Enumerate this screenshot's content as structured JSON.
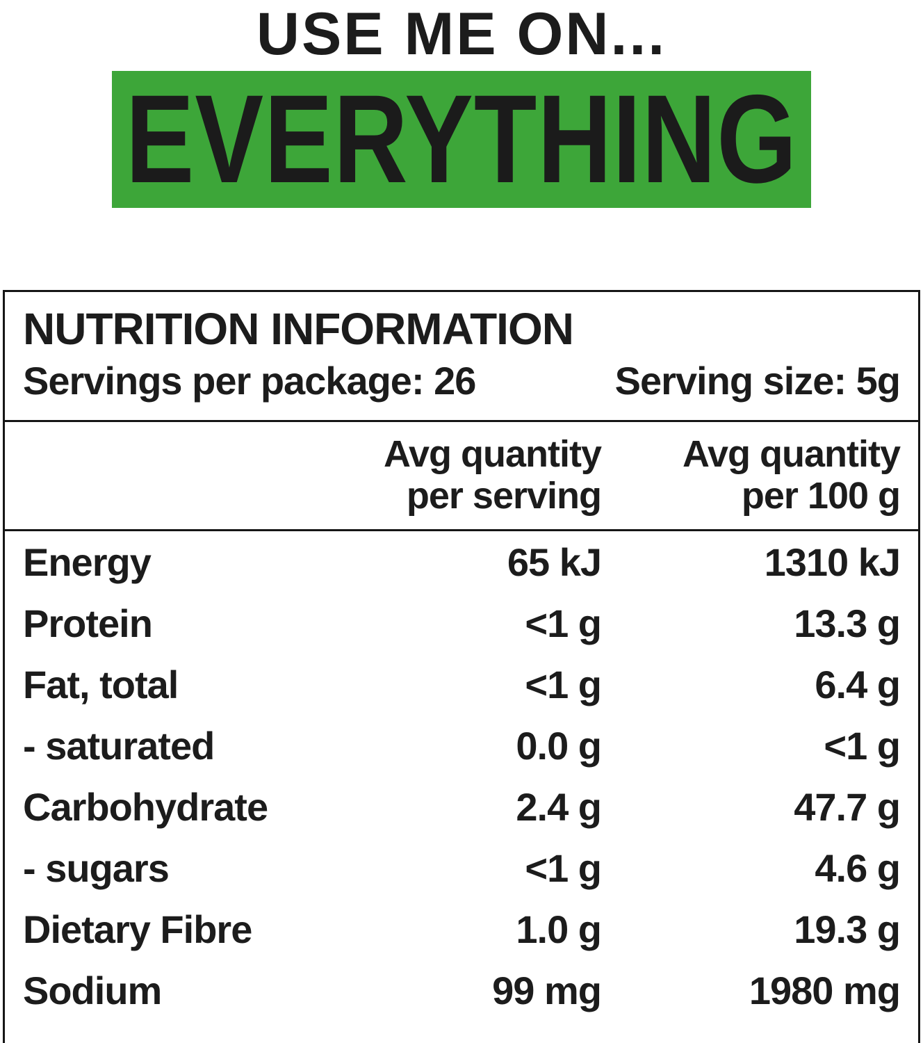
{
  "page": {
    "top_label": "USE ME ON...",
    "highlight_label": "EVERYTHING",
    "highlight_color": "#3da639",
    "text_color": "#1c1c1c"
  },
  "nutrition": {
    "title": "NUTRITION INFORMATION",
    "servings_per_package_label": "Servings per package: 26",
    "serving_size_label": "Serving size: 5g",
    "columns": {
      "per_serving": {
        "line1": "Avg quantity",
        "line2": "per serving"
      },
      "per_100g": {
        "line1": "Avg quantity",
        "line2": "per 100 g"
      }
    },
    "rows": [
      {
        "label": "Energy",
        "per_serving": "65 kJ",
        "per_100g": "1310 kJ"
      },
      {
        "label": "Protein",
        "per_serving": "<1 g",
        "per_100g": "13.3 g"
      },
      {
        "label": "Fat, total",
        "per_serving": "<1 g",
        "per_100g": "6.4 g"
      },
      {
        "label": "- saturated",
        "per_serving": "0.0 g",
        "per_100g": "<1 g"
      },
      {
        "label": "Carbohydrate",
        "per_serving": "2.4 g",
        "per_100g": "47.7 g"
      },
      {
        "label": "- sugars",
        "per_serving": "<1 g",
        "per_100g": "4.6 g"
      },
      {
        "label": "Dietary Fibre",
        "per_serving": "1.0 g",
        "per_100g": "19.3 g"
      },
      {
        "label": "Sodium",
        "per_serving": "99 mg",
        "per_100g": "1980 mg"
      }
    ]
  }
}
